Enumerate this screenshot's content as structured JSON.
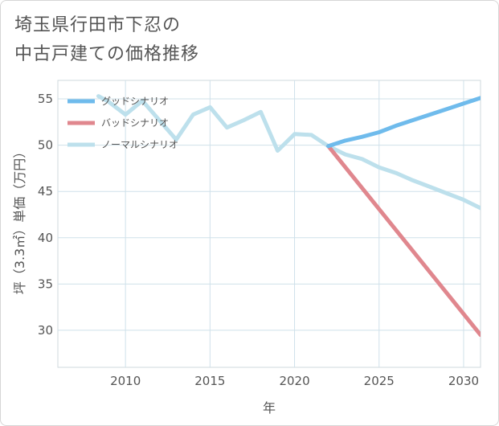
{
  "title_lines": [
    "埼玉県行田市下忍の",
    "中古戸建ての価格推移"
  ],
  "chart_data": {
    "type": "line",
    "title": "埼玉県行田市下忍の中古戸建ての価格推移",
    "xlabel": "年",
    "ylabel": "坪（3.3㎡）単価（万円）",
    "xlim": [
      2006,
      2031
    ],
    "ylim": [
      26,
      57
    ],
    "xticks": [
      2010,
      2015,
      2020,
      2025,
      2030
    ],
    "yticks": [
      30,
      35,
      40,
      45,
      50,
      55
    ],
    "grid": true,
    "legend_position": "top-left",
    "series": [
      {
        "name": "グッドシナリオ",
        "color": "#6fbbec",
        "x": [
          2022,
          2023,
          2024,
          2025,
          2026,
          2027,
          2028,
          2029,
          2030,
          2031
        ],
        "y": [
          49.9,
          50.5,
          50.9,
          51.4,
          52.1,
          52.7,
          53.3,
          53.9,
          54.5,
          55.1
        ]
      },
      {
        "name": "バッドシナリオ",
        "color": "#e0878e",
        "x": [
          2022,
          2031
        ],
        "y": [
          49.9,
          29.5
        ]
      },
      {
        "name": "ノーマルシナリオ",
        "color": "#bde0ec",
        "x": [
          2008.4,
          2009,
          2010,
          2011,
          2012,
          2013,
          2014,
          2015,
          2016,
          2017,
          2018,
          2019,
          2020,
          2021,
          2022,
          2023,
          2024,
          2025,
          2026,
          2027,
          2028,
          2029,
          2030,
          2031
        ],
        "y": [
          55.3,
          54.7,
          53.3,
          54.8,
          52.7,
          50.6,
          53.3,
          54.1,
          51.9,
          52.7,
          53.6,
          49.4,
          51.2,
          51.1,
          49.9,
          49.0,
          48.5,
          47.6,
          47.0,
          46.2,
          45.5,
          44.8,
          44.1,
          43.2
        ]
      }
    ]
  }
}
